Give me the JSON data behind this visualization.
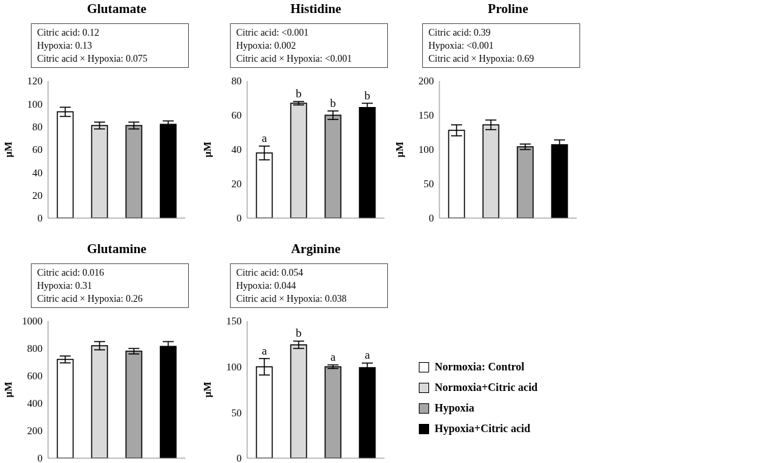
{
  "chart_data": [
    {
      "type": "bar",
      "title": "Glutamate",
      "ylabel": "µM",
      "annotations": [
        "Citric acid: 0.12",
        "Hypoxia: 0.13",
        "Citric acid × Hypoxia: 0.075"
      ],
      "categories": [
        null,
        null,
        null,
        null
      ],
      "stacked": true,
      "ylim": [
        0,
        120
      ],
      "yticks": [
        0,
        20,
        40,
        60,
        80,
        100,
        120
      ],
      "tick_labels": "y",
      "legend": false,
      "series": [
        {
          "color": "#ffffff",
          "values": [
            93,
            null,
            null,
            null
          ],
          "errors": [
            4,
            null,
            null,
            null
          ]
        },
        {
          "color": "#d9d9d9",
          "values": [
            null,
            81,
            null,
            null
          ],
          "errors": [
            null,
            3,
            null,
            null
          ]
        },
        {
          "color": "#a6a6a6",
          "values": [
            null,
            null,
            81,
            null
          ],
          "errors": [
            null,
            null,
            3,
            null
          ]
        },
        {
          "color": "#000000",
          "values": [
            null,
            null,
            null,
            82
          ],
          "errors": [
            null,
            null,
            null,
            3
          ]
        }
      ]
    },
    {
      "type": "bar",
      "title": "Histidine",
      "ylabel": "µM",
      "annotations": [
        "Citric acid: <0.001",
        "Hypoxia: 0.002",
        "Citric acid × Hypoxia: <0.001"
      ],
      "categories": [
        null,
        null,
        null,
        null
      ],
      "stacked": true,
      "ylim": [
        0,
        80
      ],
      "yticks": [
        0,
        20,
        40,
        60,
        80
      ],
      "tick_labels": "y",
      "legend": false,
      "series": [
        {
          "color": "#ffffff",
          "values": [
            38,
            null,
            null,
            null
          ],
          "errors": [
            4,
            null,
            null,
            null
          ],
          "value_labels": [
            "a",
            null,
            null,
            null
          ]
        },
        {
          "color": "#d9d9d9",
          "values": [
            null,
            67,
            null,
            null
          ],
          "errors": [
            null,
            1,
            null,
            null
          ],
          "value_labels": [
            null,
            "b",
            null,
            null
          ]
        },
        {
          "color": "#a6a6a6",
          "values": [
            null,
            null,
            60,
            null
          ],
          "errors": [
            null,
            null,
            2.5,
            null
          ],
          "value_labels": [
            null,
            null,
            "b",
            null
          ]
        },
        {
          "color": "#000000",
          "values": [
            null,
            null,
            null,
            64.5
          ],
          "errors": [
            null,
            null,
            null,
            2.5
          ],
          "value_labels": [
            null,
            null,
            null,
            "b"
          ]
        }
      ]
    },
    {
      "type": "bar",
      "title": "Proline",
      "ylabel": "µM",
      "annotations": [
        "Citric acid: 0.39",
        "Hypoxia: <0.001",
        "Citric acid × Hypoxia: 0.69"
      ],
      "categories": [
        null,
        null,
        null,
        null
      ],
      "stacked": true,
      "ylim": [
        0,
        200
      ],
      "yticks": [
        0,
        50,
        100,
        150,
        200
      ],
      "tick_labels": "y",
      "legend": false,
      "series": [
        {
          "color": "#ffffff",
          "values": [
            128,
            null,
            null,
            null
          ],
          "errors": [
            8,
            null,
            null,
            null
          ]
        },
        {
          "color": "#d9d9d9",
          "values": [
            null,
            136,
            null,
            null
          ],
          "errors": [
            null,
            7,
            null,
            null
          ]
        },
        {
          "color": "#a6a6a6",
          "values": [
            null,
            null,
            104,
            null
          ],
          "errors": [
            null,
            null,
            4,
            null
          ]
        },
        {
          "color": "#000000",
          "values": [
            null,
            null,
            null,
            107
          ],
          "errors": [
            null,
            null,
            null,
            7
          ]
        }
      ]
    },
    {
      "type": "bar",
      "title": "Glutamine",
      "ylabel": "µM",
      "annotations": [
        "Citric acid: 0.016",
        "Hypoxia: 0.31",
        "Citric acid × Hypoxia: 0.26"
      ],
      "categories": [
        null,
        null,
        null,
        null
      ],
      "stacked": true,
      "ylim": [
        0,
        1000
      ],
      "yticks": [
        0,
        200,
        400,
        600,
        800,
        1000
      ],
      "tick_labels": "y",
      "legend": false,
      "series": [
        {
          "color": "#ffffff",
          "values": [
            720,
            null,
            null,
            null
          ],
          "errors": [
            25,
            null,
            null,
            null
          ]
        },
        {
          "color": "#d9d9d9",
          "values": [
            null,
            820,
            null,
            null
          ],
          "errors": [
            null,
            30,
            null,
            null
          ]
        },
        {
          "color": "#a6a6a6",
          "values": [
            null,
            null,
            780,
            null
          ],
          "errors": [
            null,
            null,
            20,
            null
          ]
        },
        {
          "color": "#000000",
          "values": [
            null,
            null,
            null,
            815
          ],
          "errors": [
            null,
            null,
            null,
            35
          ]
        }
      ]
    },
    {
      "type": "bar",
      "title": "Arginine",
      "ylabel": "µM",
      "annotations": [
        "Citric acid: 0.054",
        "Hypoxia: 0.044",
        "Citric acid × Hypoxia: 0.038"
      ],
      "categories": [
        null,
        null,
        null,
        null
      ],
      "stacked": true,
      "ylim": [
        0,
        150
      ],
      "yticks": [
        0,
        50,
        100,
        150
      ],
      "tick_labels": "y",
      "legend": "right",
      "series": [
        {
          "name": "Normoxia: Control",
          "color": "#ffffff",
          "values": [
            100,
            null,
            null,
            null
          ],
          "errors": [
            9,
            null,
            null,
            null
          ],
          "value_labels": [
            "a",
            null,
            null,
            null
          ]
        },
        {
          "name": "Normoxia+Citric acid",
          "color": "#d9d9d9",
          "values": [
            null,
            124,
            null,
            null
          ],
          "errors": [
            null,
            4,
            null,
            null
          ],
          "value_labels": [
            null,
            "b",
            null,
            null
          ]
        },
        {
          "name": "Hypoxia",
          "color": "#a6a6a6",
          "values": [
            null,
            null,
            100,
            null
          ],
          "errors": [
            null,
            null,
            2,
            null
          ],
          "value_labels": [
            null,
            null,
            "a",
            null
          ]
        },
        {
          "name": "Hypoxia+Citric acid",
          "color": "#000000",
          "values": [
            null,
            null,
            null,
            99
          ],
          "errors": [
            null,
            null,
            null,
            5
          ],
          "value_labels": [
            null,
            null,
            null,
            "a"
          ]
        }
      ]
    }
  ]
}
